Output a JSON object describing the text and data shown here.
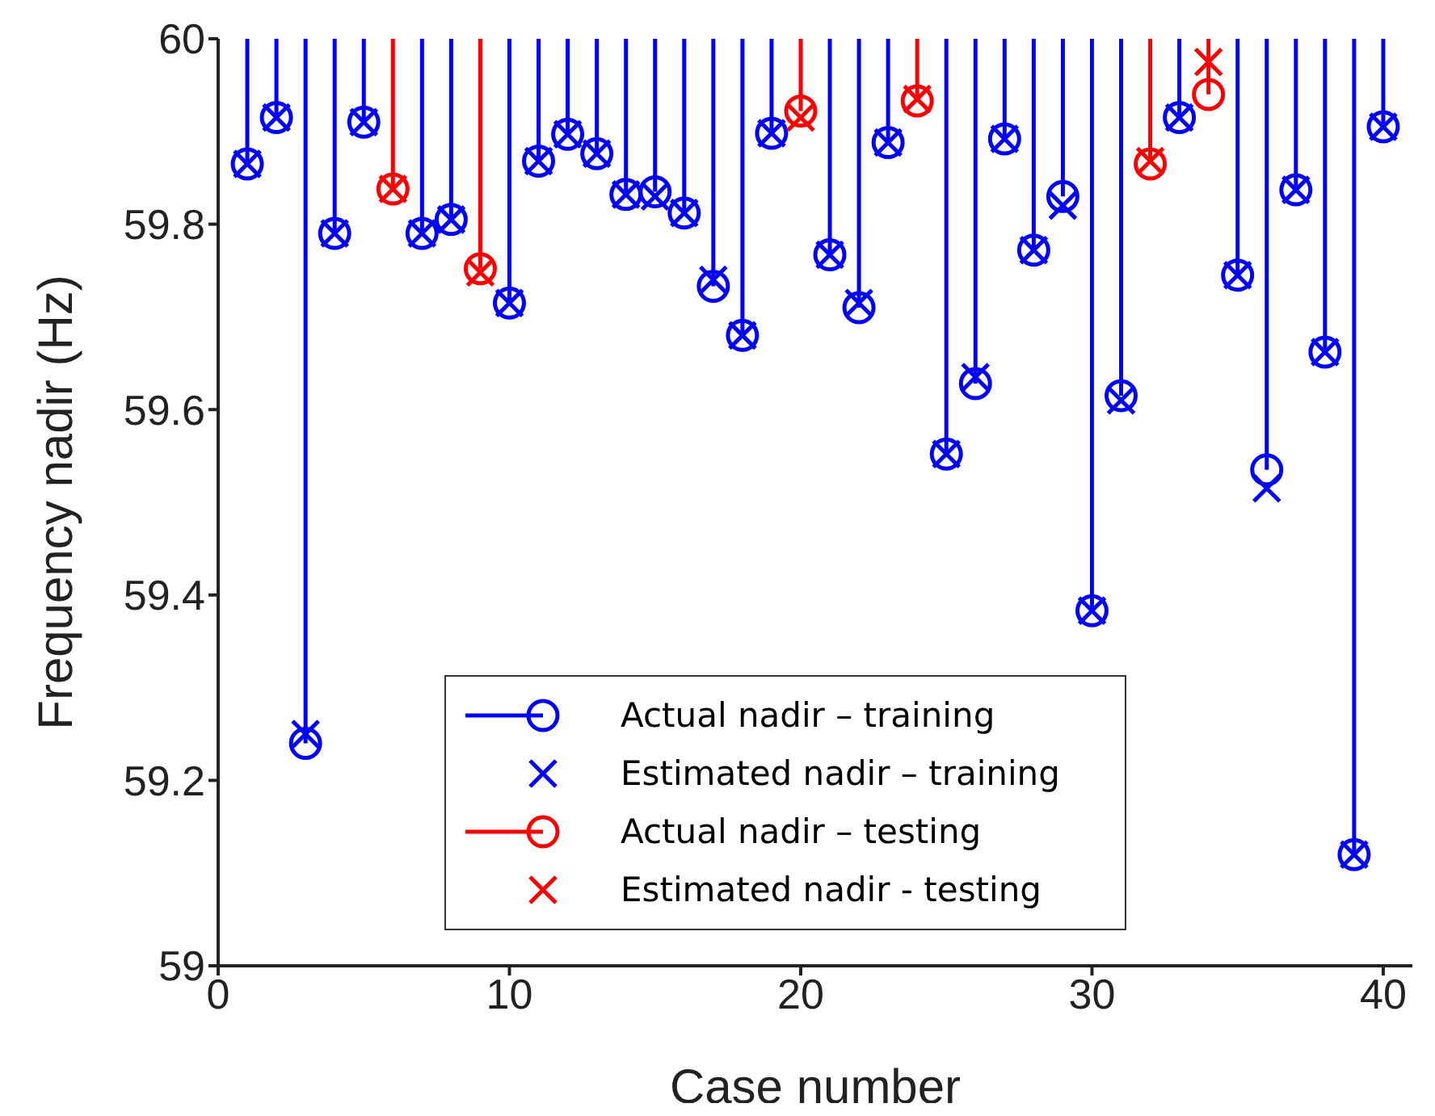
{
  "chart_data": {
    "type": "scatter",
    "xlabel": "Case number",
    "ylabel": "Frequency nadir (Hz)",
    "xlim": [
      0,
      41
    ],
    "xticks": [
      0,
      10,
      20,
      30,
      40
    ],
    "ylim": [
      59,
      60
    ],
    "yticks": [
      59,
      59.2,
      59.4,
      59.6,
      59.8,
      60
    ],
    "grid": false,
    "legend": "bottom",
    "series": [
      {
        "name": "Actual nadir – training",
        "marker": "circle",
        "color": "#0000ff",
        "errors": [
          [
            59.865,
            60
          ],
          [
            59.915,
            60
          ],
          [
            59.24,
            60
          ],
          [
            59.79,
            60
          ],
          [
            59.91,
            60
          ],
          [
            59.79,
            60
          ],
          [
            59.805,
            60
          ],
          [
            59.715,
            60
          ],
          [
            59.868,
            60
          ],
          [
            59.897,
            60
          ],
          [
            59.876,
            60
          ],
          [
            59.832,
            60
          ],
          [
            59.835,
            60
          ],
          [
            59.812,
            60
          ],
          [
            59.733,
            60
          ],
          [
            59.68,
            60
          ],
          [
            59.898,
            60
          ],
          [
            59.767,
            60
          ],
          [
            59.71,
            60
          ],
          [
            59.888,
            60
          ],
          [
            59.552,
            60
          ],
          [
            59.628,
            60
          ],
          [
            59.892,
            60
          ],
          [
            59.772,
            60
          ],
          [
            59.83,
            60
          ],
          [
            59.383,
            60
          ],
          [
            59.615,
            60
          ],
          [
            59.915,
            60
          ],
          [
            59.745,
            60
          ],
          [
            59.535,
            60
          ],
          [
            59.837,
            60
          ],
          [
            59.662,
            60
          ],
          [
            59.12,
            60
          ],
          [
            59.905,
            60
          ]
        ],
        "x": [
          1,
          2,
          3,
          4,
          5,
          7,
          8,
          10,
          11,
          12,
          13,
          14,
          15,
          16,
          17,
          18,
          19,
          21,
          22,
          23,
          25,
          26,
          27,
          28,
          29,
          30,
          31,
          33,
          35,
          36,
          37,
          38,
          39,
          40
        ],
        "values": [
          59.865,
          59.915,
          59.24,
          59.79,
          59.91,
          59.79,
          59.805,
          59.715,
          59.868,
          59.897,
          59.876,
          59.832,
          59.835,
          59.812,
          59.733,
          59.68,
          59.898,
          59.767,
          59.71,
          59.888,
          59.552,
          59.628,
          59.892,
          59.772,
          59.83,
          59.383,
          59.615,
          59.915,
          59.745,
          59.535,
          59.837,
          59.662,
          59.12,
          59.905
        ]
      },
      {
        "name": "Estimated nadir – training",
        "type": "scatter",
        "marker": "cross",
        "color": "#0000ff",
        "x": [
          1,
          2,
          3,
          4,
          5,
          7,
          8,
          10,
          11,
          12,
          13,
          14,
          15,
          16,
          17,
          18,
          19,
          21,
          22,
          23,
          25,
          26,
          27,
          28,
          29,
          30,
          31,
          33,
          35,
          36,
          37,
          38,
          39,
          40
        ],
        "values": [
          59.865,
          59.915,
          59.25,
          59.79,
          59.91,
          59.79,
          59.805,
          59.715,
          59.868,
          59.897,
          59.876,
          59.832,
          59.83,
          59.812,
          59.74,
          59.68,
          59.898,
          59.767,
          59.715,
          59.888,
          59.552,
          59.635,
          59.892,
          59.772,
          59.82,
          59.383,
          59.61,
          59.915,
          59.745,
          59.515,
          59.837,
          59.662,
          59.12,
          59.905
        ]
      },
      {
        "name": "Actual nadir – testing",
        "marker": "circle",
        "color": "#ff0000",
        "errors": [
          [
            59.838,
            60
          ],
          [
            59.752,
            60
          ],
          [
            59.922,
            60
          ],
          [
            59.933,
            60
          ],
          [
            59.865,
            60
          ],
          [
            59.94,
            60
          ]
        ],
        "x": [
          6,
          9,
          20,
          24,
          32,
          34
        ],
        "values": [
          59.838,
          59.752,
          59.922,
          59.933,
          59.865,
          59.94
        ]
      },
      {
        "name": "Estimated nadir -  testing",
        "type": "scatter",
        "marker": "cross",
        "color": "#ff0000",
        "x": [
          6,
          9,
          20,
          24,
          32,
          34
        ],
        "values": [
          59.838,
          59.748,
          59.915,
          59.935,
          59.868,
          59.975
        ]
      }
    ]
  }
}
